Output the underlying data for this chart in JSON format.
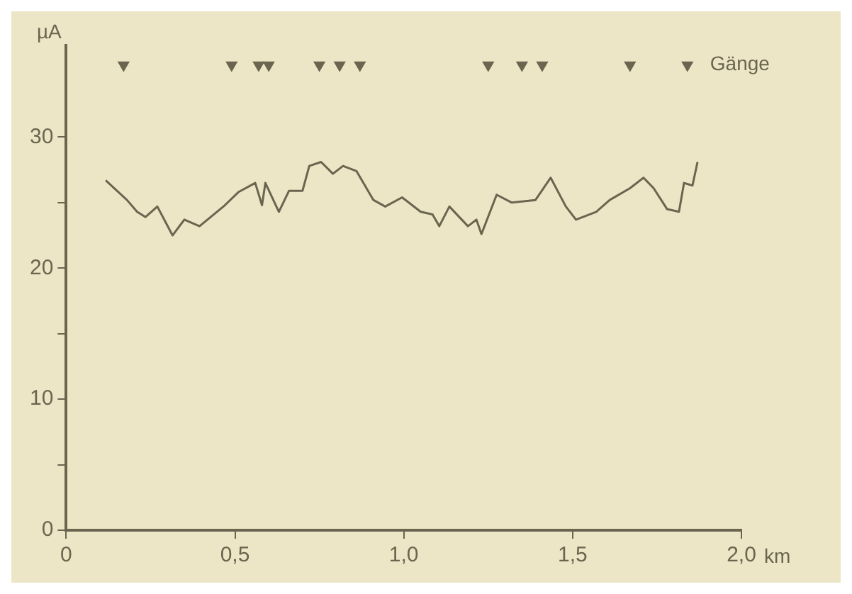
{
  "chart_data": {
    "type": "line",
    "xlabel": "km",
    "ylabel": "µA",
    "xlim": [
      0,
      2.0
    ],
    "ylim": [
      0,
      37
    ],
    "xticks": [
      0,
      {
        "value": 0.5,
        "label": "0,5"
      },
      {
        "value": 1.0,
        "label": "1,0"
      },
      {
        "value": 1.5,
        "label": "1,5"
      },
      {
        "value": 2.0,
        "label": "2,0"
      }
    ],
    "yticks": [
      0,
      {
        "value": 5,
        "label": null
      },
      10,
      {
        "value": 15,
        "label": null
      },
      20,
      {
        "value": 25,
        "label": null
      },
      30
    ],
    "grid": false,
    "legend": false,
    "series": [
      {
        "type": "line",
        "color": "#6b6550",
        "marker": "none",
        "line_style": "solid",
        "x": [
          0.117,
          0.18,
          0.21,
          0.235,
          0.27,
          0.315,
          0.35,
          0.395,
          0.47,
          0.51,
          0.56,
          0.58,
          0.59,
          0.63,
          0.66,
          0.7,
          0.72,
          0.755,
          0.79,
          0.82,
          0.86,
          0.91,
          0.945,
          0.995,
          1.05,
          1.085,
          1.105,
          1.135,
          1.19,
          1.215,
          1.23,
          1.275,
          1.32,
          1.39,
          1.435,
          1.48,
          1.51,
          1.57,
          1.61,
          1.67,
          1.71,
          1.74,
          1.78,
          1.815,
          1.83,
          1.855,
          1.87
        ],
        "values": [
          26.7,
          25.2,
          24.3,
          23.9,
          24.7,
          22.5,
          23.7,
          23.2,
          24.8,
          25.8,
          26.5,
          24.8,
          26.5,
          24.3,
          25.9,
          25.9,
          27.8,
          28.1,
          27.2,
          27.8,
          27.4,
          25.2,
          24.7,
          25.4,
          24.3,
          24.1,
          23.2,
          24.7,
          23.2,
          23.7,
          22.6,
          25.6,
          25.0,
          25.2,
          26.9,
          24.7,
          23.7,
          24.3,
          25.2,
          26.1,
          26.9,
          26.1,
          24.5,
          24.3,
          26.5,
          26.3,
          28.1
        ]
      },
      {
        "type": "scatter",
        "name": "Gänge",
        "color": "#6b6550",
        "marker": "triangle",
        "x": [
          0.17,
          0.49,
          0.57,
          0.6,
          0.75,
          0.81,
          0.87,
          1.25,
          1.35,
          1.41,
          1.67,
          1.84
        ],
        "values": [
          35.5,
          35.5,
          35.5,
          35.5,
          35.5,
          35.5,
          35.5,
          35.5,
          35.5,
          35.5,
          35.5,
          35.5
        ]
      }
    ]
  }
}
